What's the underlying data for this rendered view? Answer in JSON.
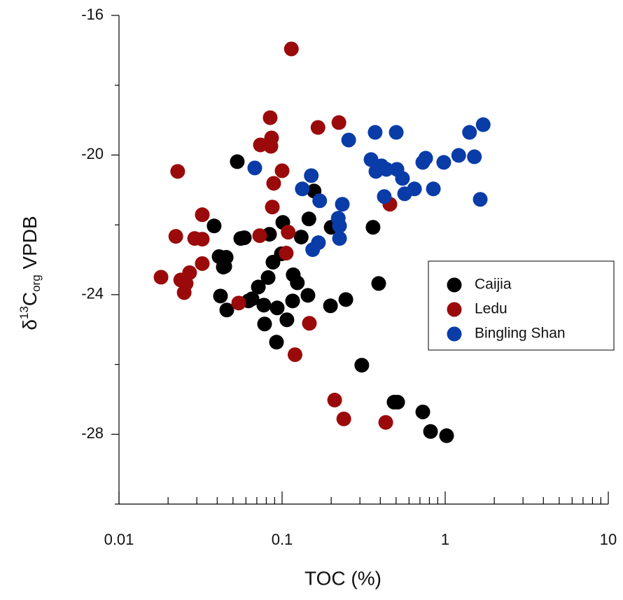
{
  "chart_data": {
    "type": "scatter",
    "x_label": "TOC (%)",
    "y_label": {
      "prefix": "δ",
      "sup": "13",
      "main": "C",
      "sub": "org",
      "suffix": " VPDB"
    },
    "x_scale": "log",
    "xlim": [
      0.01,
      10
    ],
    "xticks": [
      0.01,
      0.1,
      1,
      10
    ],
    "ylim": [
      -30,
      -16
    ],
    "yticks": [
      -16,
      -20,
      -24,
      -28
    ],
    "legend": "right",
    "series": [
      {
        "name": "Caijia",
        "color": "#000000",
        "x": [
          0.0531,
          0.0383,
          0.0411,
          0.0454,
          0.0445,
          0.0419,
          0.0436,
          0.0458,
          0.0558,
          0.0587,
          0.0622,
          0.0654,
          0.0715,
          0.0773,
          0.0821,
          0.0879,
          0.0781,
          0.0837,
          0.0933,
          0.0924,
          0.101,
          0.099,
          0.107,
          0.117,
          0.116,
          0.124,
          0.131,
          0.146,
          0.157,
          0.144,
          0.2,
          0.198,
          0.246,
          0.308,
          0.361,
          0.391,
          0.486,
          0.511,
          0.729,
          0.813,
          1.02
        ],
        "y": [
          -20.19,
          -22.03,
          -22.91,
          -22.93,
          -23.19,
          -24.04,
          -23.21,
          -24.44,
          -22.39,
          -22.37,
          -24.18,
          -24.12,
          -23.78,
          -24.3,
          -23.51,
          -23.07,
          -24.84,
          -22.27,
          -24.38,
          -25.36,
          -21.93,
          -22.83,
          -24.72,
          -23.43,
          -24.18,
          -23.66,
          -22.35,
          -21.83,
          -21.03,
          -24.02,
          -22.07,
          -24.32,
          -24.14,
          -26.02,
          -22.07,
          -23.68,
          -27.08,
          -27.08,
          -27.36,
          -27.92,
          -28.04
        ]
      },
      {
        "name": "Ledu",
        "color": "#9b0a0a",
        "x": [
          0.0181,
          0.0223,
          0.0229,
          0.0239,
          0.0251,
          0.0258,
          0.0271,
          0.0291,
          0.0324,
          0.0324,
          0.0324,
          0.0542,
          0.0729,
          0.0736,
          0.0845,
          0.0862,
          0.0854,
          0.0871,
          0.0888,
          0.1,
          0.106,
          0.109,
          0.12,
          0.114,
          0.147,
          0.166,
          0.21,
          0.223,
          0.239,
          0.432,
          0.458
        ],
        "y": [
          -23.5,
          -22.33,
          -20.47,
          -23.58,
          -23.94,
          -23.68,
          -23.37,
          -22.39,
          -22.41,
          -21.71,
          -23.11,
          -24.24,
          -22.31,
          -19.71,
          -18.93,
          -19.51,
          -19.75,
          -21.49,
          -20.81,
          -20.45,
          -22.81,
          -22.21,
          -25.72,
          -16.96,
          -24.82,
          -19.21,
          -27.02,
          -19.07,
          -27.56,
          -27.66,
          -21.41
        ]
      },
      {
        "name": "Bingling Shan",
        "color": "#0a3ca8",
        "x": [
          0.068,
          0.133,
          0.151,
          0.17,
          0.154,
          0.167,
          0.221,
          0.225,
          0.225,
          0.234,
          0.256,
          0.351,
          0.376,
          0.372,
          0.407,
          0.423,
          0.436,
          0.501,
          0.506,
          0.547,
          0.564,
          0.648,
          0.729,
          0.759,
          0.846,
          0.98,
          1.21,
          1.41,
          1.51,
          1.64,
          1.71
        ],
        "y": [
          -20.37,
          -20.97,
          -20.59,
          -21.31,
          -22.71,
          -22.51,
          -21.81,
          -22.03,
          -22.39,
          -21.41,
          -19.57,
          -20.13,
          -20.47,
          -19.35,
          -20.31,
          -21.19,
          -20.41,
          -19.35,
          -20.41,
          -20.67,
          -21.11,
          -20.97,
          -20.21,
          -20.09,
          -20.97,
          -20.21,
          -20.01,
          -19.35,
          -20.05,
          -21.27,
          -19.13
        ]
      }
    ]
  }
}
